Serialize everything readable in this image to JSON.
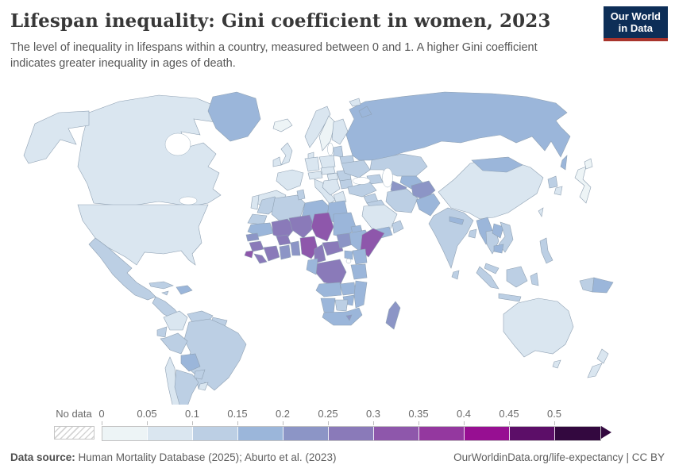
{
  "header": {
    "title": "Lifespan inequality: Gini coefficient in women, 2023",
    "subtitle": "The level of inequality in lifespans within a country, measured between 0 and 1. A higher Gini coefficient indicates greater inequality in ages of death.",
    "logo": {
      "line1": "Our World",
      "line2": "in Data",
      "bg_color": "#0d2e57",
      "accent_color": "#a8342c"
    }
  },
  "legend": {
    "no_data_label": "No data",
    "tick_labels": [
      "0",
      "0.05",
      "0.1",
      "0.15",
      "0.2",
      "0.25",
      "0.3",
      "0.35",
      "0.4",
      "0.45",
      "0.5"
    ]
  },
  "footer": {
    "source_label": "Data source:",
    "source_text": " Human Mortality Database (2025); Aburto et al. (2023)",
    "right_text": "OurWorldinData.org/life-expectancy | CC BY"
  },
  "chart_data": {
    "type": "choropleth-map",
    "title": "Lifespan inequality: Gini coefficient in women, 2023",
    "metric": "Gini coefficient of inequality in lifespans (women)",
    "year": 2023,
    "value_range": [
      0,
      0.5
    ],
    "legend_position": "bottom",
    "color_scale": {
      "thresholds": [
        0,
        0.05,
        0.1,
        0.15,
        0.2,
        0.25,
        0.3,
        0.35,
        0.4,
        0.45,
        0.5
      ],
      "colors": [
        "#edf4f6",
        "#dae6f0",
        "#bccfe4",
        "#9bb6da",
        "#8c95c6",
        "#8a7ab9",
        "#8e57ab",
        "#94389f",
        "#970f92",
        "#5c0e68",
        "#33083f"
      ],
      "no_data": "hatched"
    },
    "values_estimated_from_color_scale": true,
    "countries": {
      "canada": 0.07,
      "usa": 0.08,
      "greenland": 0.17,
      "mexico": 0.12,
      "cuba": 0.12,
      "haiti": 0.18,
      "jamaica": 0.13,
      "guatemala": 0.14,
      "colombia": 0.06,
      "venezuela": 0.12,
      "guyana": 0.13,
      "ecuador": 0.11,
      "peru": 0.1,
      "brazil": 0.12,
      "bolivia": 0.16,
      "paraguay": 0.13,
      "uruguay": 0.09,
      "argentina": 0.11,
      "chile": 0.05,
      "iceland": 0.04,
      "ireland": 0.06,
      "united_kingdom": 0.07,
      "portugal": 0.08,
      "spain": 0.06,
      "france": 0.07,
      "germany": 0.06,
      "denmark": 0.05,
      "norway": 0.05,
      "sweden": 0.04,
      "finland": 0.06,
      "poland": 0.08,
      "czechia": 0.07,
      "austria": 0.06,
      "italy": 0.05,
      "greece": 0.07,
      "serbia": 0.09,
      "romania": 0.1,
      "bulgaria": 0.1,
      "hungary": 0.09,
      "lithuania": 0.1,
      "belarus": 0.12,
      "ukraine": 0.13,
      "russia": 0.16,
      "turkey": 0.11,
      "azerbaijan": 0.13,
      "syria": 0.13,
      "iraq": 0.14,
      "saudi_arabia": 0.09,
      "yemen": 0.17,
      "oman": 0.12,
      "iran": 0.13,
      "turkmenistan": 0.2,
      "uzbekistan": 0.18,
      "kazakhstan": 0.12,
      "afghanistan": 0.23,
      "pakistan": 0.19,
      "india": 0.13,
      "nepal": 0.15,
      "bangladesh": 0.12,
      "sri_lanka": 0.14,
      "china": 0.07,
      "mongolia": 0.15,
      "north_korea": 0.12,
      "south_korea": 0.06,
      "japan": 0.04,
      "taiwan": 0.08,
      "myanmar": 0.17,
      "thailand": 0.14,
      "laos": 0.18,
      "cambodia": 0.16,
      "vietnam": 0.13,
      "malaysia": 0.12,
      "indonesia": 0.13,
      "philippines": 0.14,
      "papua_new_guinea": 0.19,
      "australia": 0.06,
      "new_zealand": 0.05,
      "morocco": 0.12,
      "western_sahara": 0.1,
      "algeria": 0.14,
      "tunisia": 0.11,
      "libya": 0.17,
      "egypt": 0.16,
      "mauritania": 0.15,
      "mali": 0.28,
      "niger": 0.27,
      "chad": 0.32,
      "sudan": 0.18,
      "eritrea": 0.17,
      "senegal": 0.24,
      "guinea": 0.29,
      "sierra_leone": 0.3,
      "liberia": 0.27,
      "cote_divoire": 0.28,
      "burkina_faso": 0.26,
      "ghana": 0.22,
      "benin": 0.24,
      "nigeria": 0.32,
      "cameroon": 0.27,
      "central_african_republic": 0.26,
      "south_sudan": 0.24,
      "ethiopia": 0.19,
      "somalia": 0.3,
      "kenya": 0.17,
      "uganda": 0.19,
      "democratic_republic_of_congo": 0.25,
      "congo": 0.19,
      "tanzania": 0.17,
      "angola": 0.18,
      "zambia": 0.18,
      "mozambique": 0.19,
      "zimbabwe": 0.18,
      "namibia": 0.17,
      "botswana": 0.13,
      "south_africa": 0.17,
      "lesotho": 0.22,
      "madagascar": 0.2
    }
  }
}
